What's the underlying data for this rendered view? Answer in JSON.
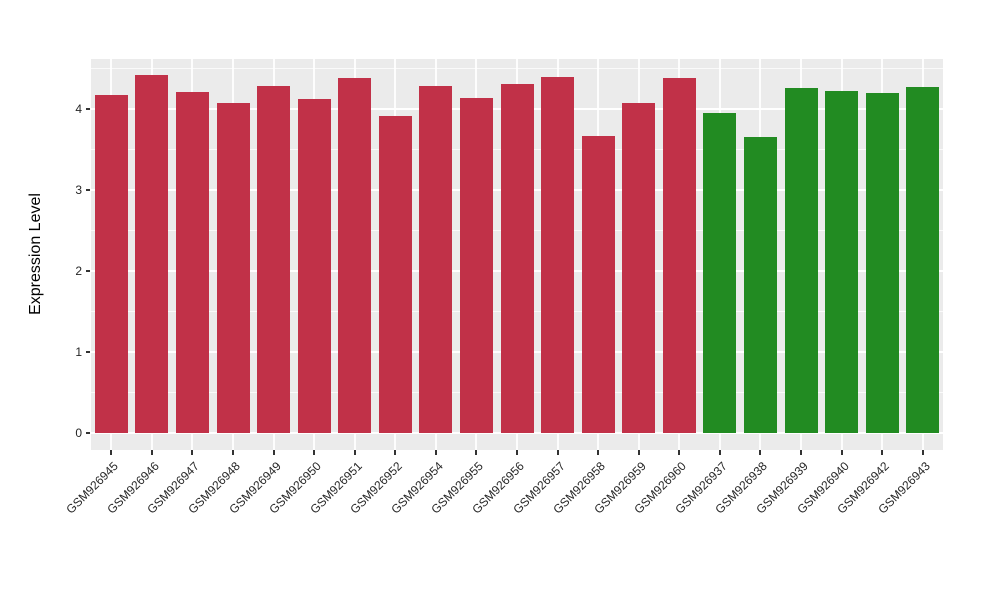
{
  "chart_data": {
    "type": "bar",
    "title": "",
    "xlabel": "",
    "ylabel": "Expression Level",
    "yticks": [
      0,
      1,
      2,
      3,
      4
    ],
    "ylim": [
      0,
      4.62
    ],
    "grid": "white major and minor horizontal gridlines plus vertical category gridlines on gray panel",
    "legend_position": "none",
    "panel_bg": "#EBEBEB",
    "grid_color": "#FFFFFF",
    "tick_mark_color": "#333333",
    "axis_text_color": "#262626",
    "bar_colors": {
      "red_group": "#C13148",
      "green_group": "#228B22"
    },
    "categories": [
      "GSM926945",
      "GSM926946",
      "GSM926947",
      "GSM926948",
      "GSM926949",
      "GSM926950",
      "GSM926951",
      "GSM926952",
      "GSM926954",
      "GSM926955",
      "GSM926956",
      "GSM926957",
      "GSM926958",
      "GSM926959",
      "GSM926960",
      "GSM926937",
      "GSM926938",
      "GSM926939",
      "GSM926940",
      "GSM926942",
      "GSM926943"
    ],
    "bars": [
      {
        "label": "GSM926945",
        "value": 4.17,
        "color": "#C13148"
      },
      {
        "label": "GSM926946",
        "value": 4.42,
        "color": "#C13148"
      },
      {
        "label": "GSM926947",
        "value": 4.21,
        "color": "#C13148"
      },
      {
        "label": "GSM926948",
        "value": 4.07,
        "color": "#C13148"
      },
      {
        "label": "GSM926949",
        "value": 4.28,
        "color": "#C13148"
      },
      {
        "label": "GSM926950",
        "value": 4.12,
        "color": "#C13148"
      },
      {
        "label": "GSM926951",
        "value": 4.38,
        "color": "#C13148"
      },
      {
        "label": "GSM926952",
        "value": 3.91,
        "color": "#C13148"
      },
      {
        "label": "GSM926954",
        "value": 4.29,
        "color": "#C13148"
      },
      {
        "label": "GSM926955",
        "value": 4.13,
        "color": "#C13148"
      },
      {
        "label": "GSM926956",
        "value": 4.31,
        "color": "#C13148"
      },
      {
        "label": "GSM926957",
        "value": 4.39,
        "color": "#C13148"
      },
      {
        "label": "GSM926958",
        "value": 3.67,
        "color": "#C13148"
      },
      {
        "label": "GSM926959",
        "value": 4.08,
        "color": "#C13148"
      },
      {
        "label": "GSM926960",
        "value": 4.38,
        "color": "#C13148"
      },
      {
        "label": "GSM926937",
        "value": 3.95,
        "color": "#228B22"
      },
      {
        "label": "GSM926938",
        "value": 3.66,
        "color": "#228B22"
      },
      {
        "label": "GSM926939",
        "value": 4.26,
        "color": "#228B22"
      },
      {
        "label": "GSM926940",
        "value": 4.22,
        "color": "#228B22"
      },
      {
        "label": "GSM926942",
        "value": 4.2,
        "color": "#228B22"
      },
      {
        "label": "GSM926943",
        "value": 4.27,
        "color": "#228B22"
      }
    ]
  }
}
